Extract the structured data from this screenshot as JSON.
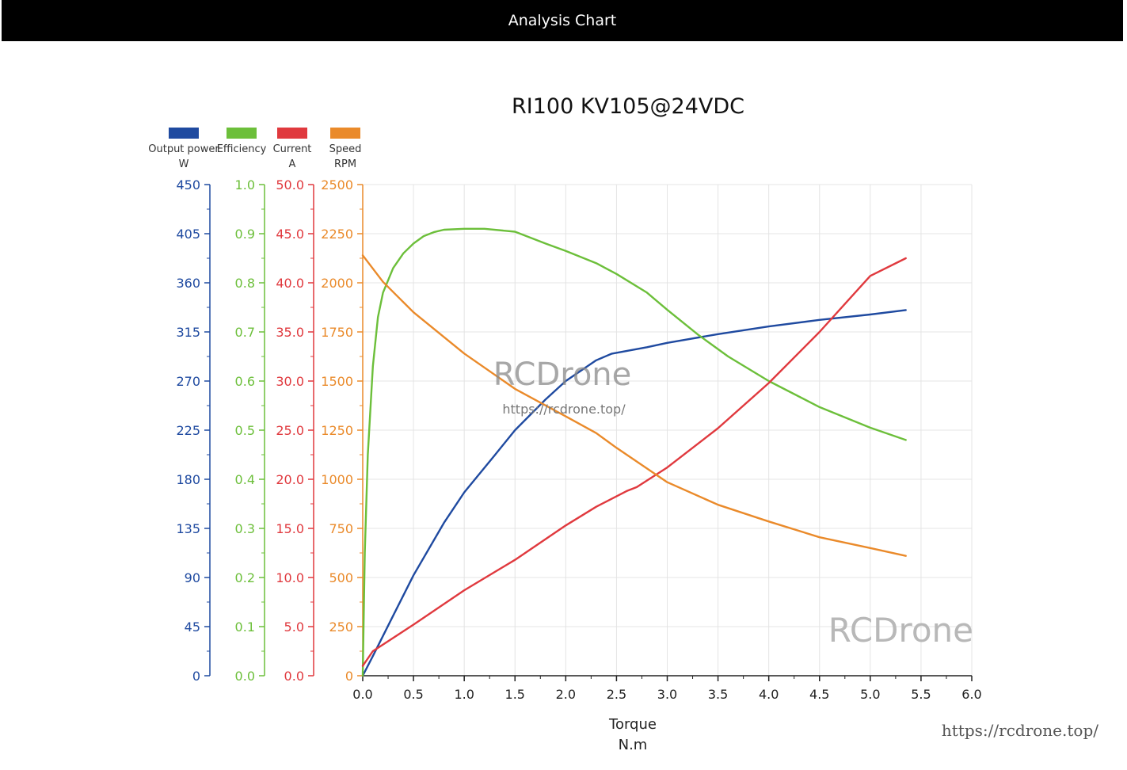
{
  "header": {
    "title": "Analysis Chart"
  },
  "colors": {
    "power": "#1f4aa0",
    "efficiency": "#6cbf3a",
    "current": "#e0393e",
    "speed": "#ea8a2a",
    "grid": "#e4e4e4"
  },
  "watermarks": {
    "center_brand": "RCDrone",
    "center_url": "https://rcdrone.top/",
    "corner_brand": "RCDrone",
    "bottom_url": "https://rcdrone.top/"
  },
  "chart_data": {
    "type": "line",
    "title": "RI100 KV105@24VDC",
    "xlabel": "Torque",
    "xunit": "N.m",
    "xlim": [
      0,
      6.0
    ],
    "x_ticks": [
      "0.0",
      "0.5",
      "1.0",
      "1.5",
      "2.0",
      "2.5",
      "3.0",
      "3.5",
      "4.0",
      "4.5",
      "5.0",
      "5.5",
      "6.0"
    ],
    "grid": true,
    "legend": [
      {
        "name": "Output power",
        "unit": "W"
      },
      {
        "name": "Efficiency",
        "unit": ""
      },
      {
        "name": "Current",
        "unit": "A"
      },
      {
        "name": "Speed",
        "unit": "RPM"
      }
    ],
    "axes": [
      {
        "name": "power",
        "range": [
          0,
          450
        ],
        "ticks": [
          "0",
          "45",
          "90",
          "135",
          "180",
          "225",
          "270",
          "315",
          "360",
          "405",
          "450"
        ]
      },
      {
        "name": "efficiency",
        "range": [
          0,
          1.0
        ],
        "ticks": [
          "0.0",
          "0.1",
          "0.2",
          "0.3",
          "0.4",
          "0.5",
          "0.6",
          "0.7",
          "0.8",
          "0.9",
          "1.0"
        ]
      },
      {
        "name": "current",
        "range": [
          0,
          50
        ],
        "ticks": [
          "0.0",
          "5.0",
          "10.0",
          "15.0",
          "20.0",
          "25.0",
          "30.0",
          "35.0",
          "40.0",
          "45.0",
          "50.0"
        ]
      },
      {
        "name": "speed",
        "range": [
          0,
          2500
        ],
        "ticks": [
          "0",
          "250",
          "500",
          "750",
          "1000",
          "1250",
          "1500",
          "1750",
          "2000",
          "2250",
          "2500"
        ]
      }
    ],
    "series": [
      {
        "name": "Output power",
        "axis": "power",
        "x": [
          0,
          0.1,
          0.3,
          0.5,
          0.8,
          1.0,
          1.3,
          1.5,
          1.8,
          2.0,
          2.3,
          2.45,
          2.8,
          3.0,
          3.5,
          4.0,
          4.5,
          5.0,
          5.35
        ],
        "y": [
          0,
          18,
          55,
          92,
          140,
          168,
          202,
          225,
          253,
          270,
          289,
          295,
          301,
          305,
          313,
          320,
          326,
          331,
          335
        ]
      },
      {
        "name": "Efficiency",
        "axis": "efficiency",
        "x": [
          0,
          0.02,
          0.05,
          0.1,
          0.15,
          0.2,
          0.3,
          0.4,
          0.5,
          0.6,
          0.7,
          0.8,
          1.0,
          1.2,
          1.5,
          1.8,
          2.0,
          2.3,
          2.5,
          2.8,
          3.0,
          3.3,
          3.6,
          4.0,
          4.5,
          5.0,
          5.35
        ],
        "y": [
          0,
          0.25,
          0.45,
          0.63,
          0.73,
          0.78,
          0.83,
          0.86,
          0.88,
          0.895,
          0.903,
          0.908,
          0.91,
          0.91,
          0.904,
          0.88,
          0.865,
          0.84,
          0.818,
          0.78,
          0.745,
          0.695,
          0.65,
          0.6,
          0.547,
          0.505,
          0.48
        ]
      },
      {
        "name": "Current",
        "axis": "current",
        "x": [
          0,
          0.1,
          0.5,
          1.0,
          1.5,
          2.0,
          2.3,
          2.6,
          2.7,
          3.0,
          3.5,
          4.0,
          4.5,
          5.0,
          5.35
        ],
        "y": [
          1,
          2.5,
          5.2,
          8.7,
          11.8,
          15.3,
          17.2,
          18.8,
          19.2,
          21.2,
          25.2,
          29.8,
          35.0,
          40.7,
          42.5
        ]
      },
      {
        "name": "Speed",
        "axis": "speed",
        "x": [
          0,
          0.2,
          0.5,
          1.0,
          1.5,
          2.0,
          2.3,
          2.5,
          3.0,
          3.5,
          4.0,
          4.5,
          5.0,
          5.35
        ],
        "y": [
          2140,
          2005,
          1850,
          1640,
          1460,
          1320,
          1235,
          1160,
          985,
          870,
          785,
          705,
          650,
          610
        ]
      }
    ]
  }
}
